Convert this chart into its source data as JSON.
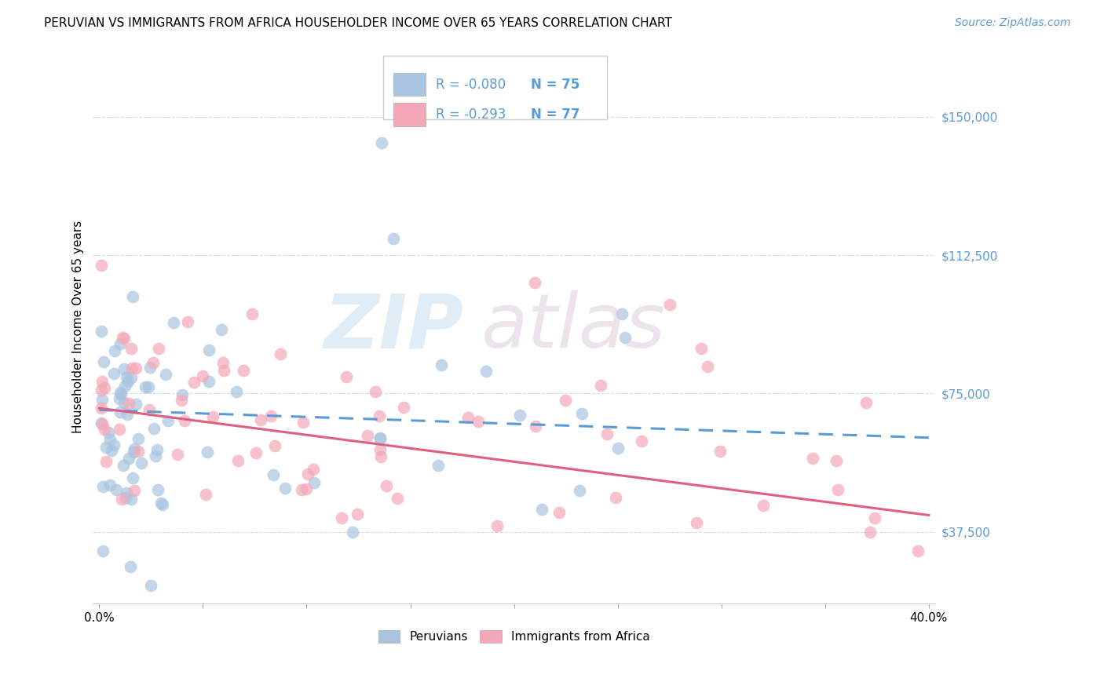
{
  "title": "PERUVIAN VS IMMIGRANTS FROM AFRICA HOUSEHOLDER INCOME OVER 65 YEARS CORRELATION CHART",
  "source": "Source: ZipAtlas.com",
  "ylabel": "Householder Income Over 65 years",
  "xlim": [
    -0.003,
    0.403
  ],
  "ylim": [
    18000,
    168000
  ],
  "ytick_vals": [
    37500,
    75000,
    112500,
    150000
  ],
  "ytick_labels": [
    "$37,500",
    "$75,000",
    "$112,500",
    "$150,000"
  ],
  "xtick_vals": [
    0.0,
    0.05,
    0.1,
    0.15,
    0.2,
    0.25,
    0.3,
    0.35,
    0.4
  ],
  "xtick_labels": [
    "0.0%",
    "",
    "",
    "",
    "",
    "",
    "",
    "",
    "40.0%"
  ],
  "peruvian_color": "#a8c4e0",
  "africa_color": "#f4a8b8",
  "peruvian_line_color": "#5b9bd5",
  "africa_line_color": "#e06080",
  "peruvian_R": -0.08,
  "peruvian_N": 75,
  "africa_R": -0.293,
  "africa_N": 77,
  "grid_color": "#d0dde8",
  "title_fontsize": 11,
  "axis_label_fontsize": 11,
  "tick_fontsize": 11
}
